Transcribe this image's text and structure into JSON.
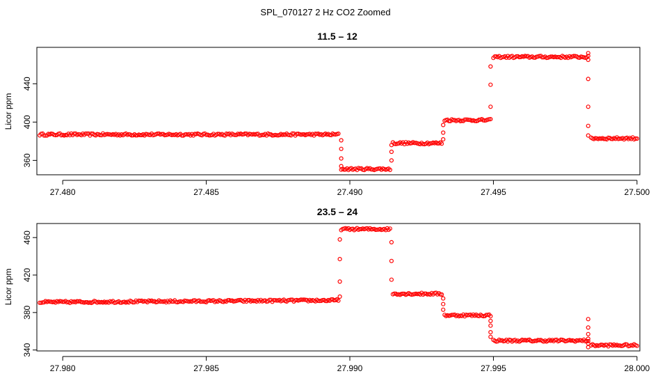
{
  "figure": {
    "suptitle": "SPL_070127  2 Hz CO2 Zoomed"
  },
  "chart_data": [
    {
      "type": "scatter",
      "title": "11.5 – 12",
      "xlabel": "",
      "ylabel": "Licor ppm",
      "xlim": [
        27.4791,
        27.5001
      ],
      "ylim": [
        345,
        478
      ],
      "x_ticks": [
        "27.480",
        "27.485",
        "27.490",
        "27.495",
        "27.500"
      ],
      "x_tick_values": [
        27.48,
        27.485,
        27.49,
        27.495,
        27.5
      ],
      "y_ticks": [
        "360",
        "400",
        "440"
      ],
      "y_tick_values": [
        360,
        400,
        440
      ],
      "color": "#ff0000",
      "marker": "open-circle",
      "segments": [
        {
          "x_start": 27.4792,
          "x_end": 27.4896,
          "value": 387
        },
        {
          "x_start": 27.4897,
          "x_end": 27.4914,
          "value": 351
        },
        {
          "x_start": 27.4915,
          "x_end": 27.4932,
          "value": 378
        },
        {
          "x_start": 27.4933,
          "x_end": 27.4949,
          "value": 402
        },
        {
          "x_start": 27.495,
          "x_end": 27.4983,
          "value": 468
        },
        {
          "x_start": 27.4984,
          "x_end": 27.5,
          "value": 383
        }
      ],
      "transitions": [
        {
          "x": 27.4897,
          "values": [
            381,
            372,
            362,
            354
          ]
        },
        {
          "x": 27.49145,
          "values": [
            360,
            369,
            376
          ]
        },
        {
          "x": 27.49325,
          "values": [
            382,
            389,
            397
          ]
        },
        {
          "x": 27.4949,
          "values": [
            416,
            439,
            458
          ]
        },
        {
          "x": 27.4983,
          "values": [
            472,
            465,
            445,
            416,
            396,
            386
          ]
        }
      ]
    },
    {
      "type": "scatter",
      "title": "23.5 – 24",
      "xlabel": "",
      "ylabel": "Licor ppm",
      "xlim": [
        27.9791,
        28.0001
      ],
      "ylim": [
        339,
        475
      ],
      "x_ticks": [
        "27.980",
        "27.985",
        "27.990",
        "27.995",
        "28.000"
      ],
      "x_tick_values": [
        27.98,
        27.985,
        27.99,
        27.995,
        28.0
      ],
      "y_ticks": [
        "340",
        "380",
        "420",
        "460"
      ],
      "y_tick_values": [
        340,
        380,
        420,
        460
      ],
      "color": "#ff0000",
      "marker": "open-circle",
      "segments": [
        {
          "x_start": 27.9792,
          "x_end": 27.9896,
          "value_start": 391,
          "value_end": 393
        },
        {
          "x_start": 27.9897,
          "x_end": 27.9914,
          "value": 469
        },
        {
          "x_start": 27.9915,
          "x_end": 27.9932,
          "value": 400
        },
        {
          "x_start": 27.9933,
          "x_end": 27.9949,
          "value": 377
        },
        {
          "x_start": 27.995,
          "x_end": 27.9983,
          "value": 350
        },
        {
          "x_start": 27.9984,
          "x_end": 28.0,
          "value": 345
        }
      ],
      "transitions": [
        {
          "x": 27.98965,
          "values": [
            397,
            413,
            437,
            458
          ]
        },
        {
          "x": 27.99145,
          "values": [
            455,
            435,
            415
          ]
        },
        {
          "x": 27.99325,
          "values": [
            395,
            389,
            383
          ]
        },
        {
          "x": 27.9949,
          "values": [
            371,
            366,
            359,
            354
          ]
        },
        {
          "x": 27.9983,
          "values": [
            373,
            364,
            357,
            352,
            347,
            343
          ]
        }
      ]
    }
  ]
}
